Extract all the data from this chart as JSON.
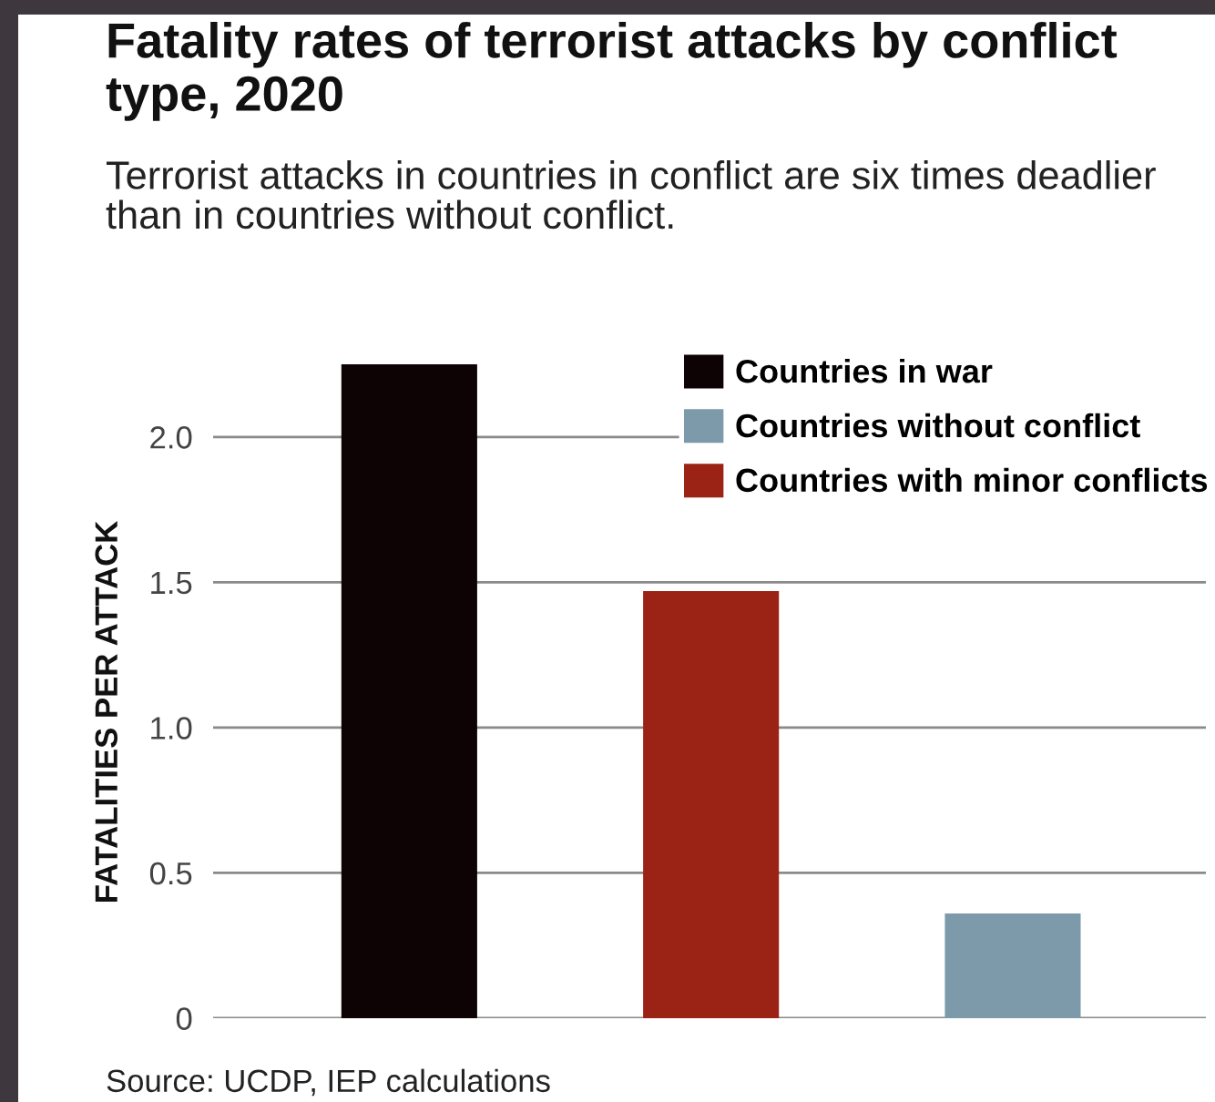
{
  "chart_data": {
    "type": "bar",
    "title": "Fatality rates of terrorist attacks by conflict type, 2020",
    "subtitle": "Terrorist attacks in countries in conflict are six times deadlier than in countries without conflict.",
    "ylabel": "FATALITIES PER ATTACK",
    "annotations": [
      "Source: UCDP, IEP calculations"
    ],
    "categories": [
      null,
      null,
      null
    ],
    "series": [
      {
        "name": "Countries in war",
        "color": "#0d0204",
        "values": [
          2.25,
          null,
          null
        ]
      },
      {
        "name": "Countries without conflict",
        "color": "#7d9aaa",
        "values": [
          null,
          null,
          0.36
        ]
      },
      {
        "name": "Countries with minor conflicts",
        "color": "#9b2315",
        "values": [
          null,
          1.47,
          null
        ]
      }
    ],
    "ylim": [
      0,
      2.25
    ],
    "yticks": [
      0,
      0.5,
      {
        "value": 1,
        "label": "1.0"
      },
      1.5,
      {
        "value": 2,
        "label": "2.0"
      }
    ],
    "grid": "y",
    "legend": "top right"
  }
}
